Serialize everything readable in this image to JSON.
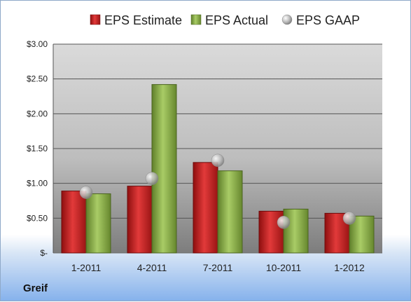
{
  "company_label": "Greif",
  "chart_data": {
    "type": "bar",
    "categories": [
      "1-2011",
      "4-2011",
      "7-2011",
      "10-2011",
      "1-2012"
    ],
    "series": [
      {
        "name": "EPS Estimate",
        "kind": "bar",
        "color": "#c81c1c",
        "values": [
          0.89,
          0.96,
          1.3,
          0.6,
          0.57
        ]
      },
      {
        "name": "EPS Actual",
        "kind": "bar",
        "color": "#8aae48",
        "values": [
          0.85,
          2.42,
          1.18,
          0.63,
          0.53
        ]
      },
      {
        "name": "EPS GAAP",
        "kind": "marker",
        "color": "#c0c0c0",
        "values": [
          0.87,
          1.07,
          1.33,
          0.44,
          0.5
        ]
      }
    ],
    "ylim": [
      0,
      3
    ],
    "yticks": [
      0,
      0.5,
      1.0,
      1.5,
      2.0,
      2.5,
      3.0
    ],
    "ytick_labels": [
      "$-",
      "$0.50",
      "$1.00",
      "$1.50",
      "$2.00",
      "$2.50",
      "$3.00"
    ],
    "grid": true,
    "legend_position": "top"
  }
}
